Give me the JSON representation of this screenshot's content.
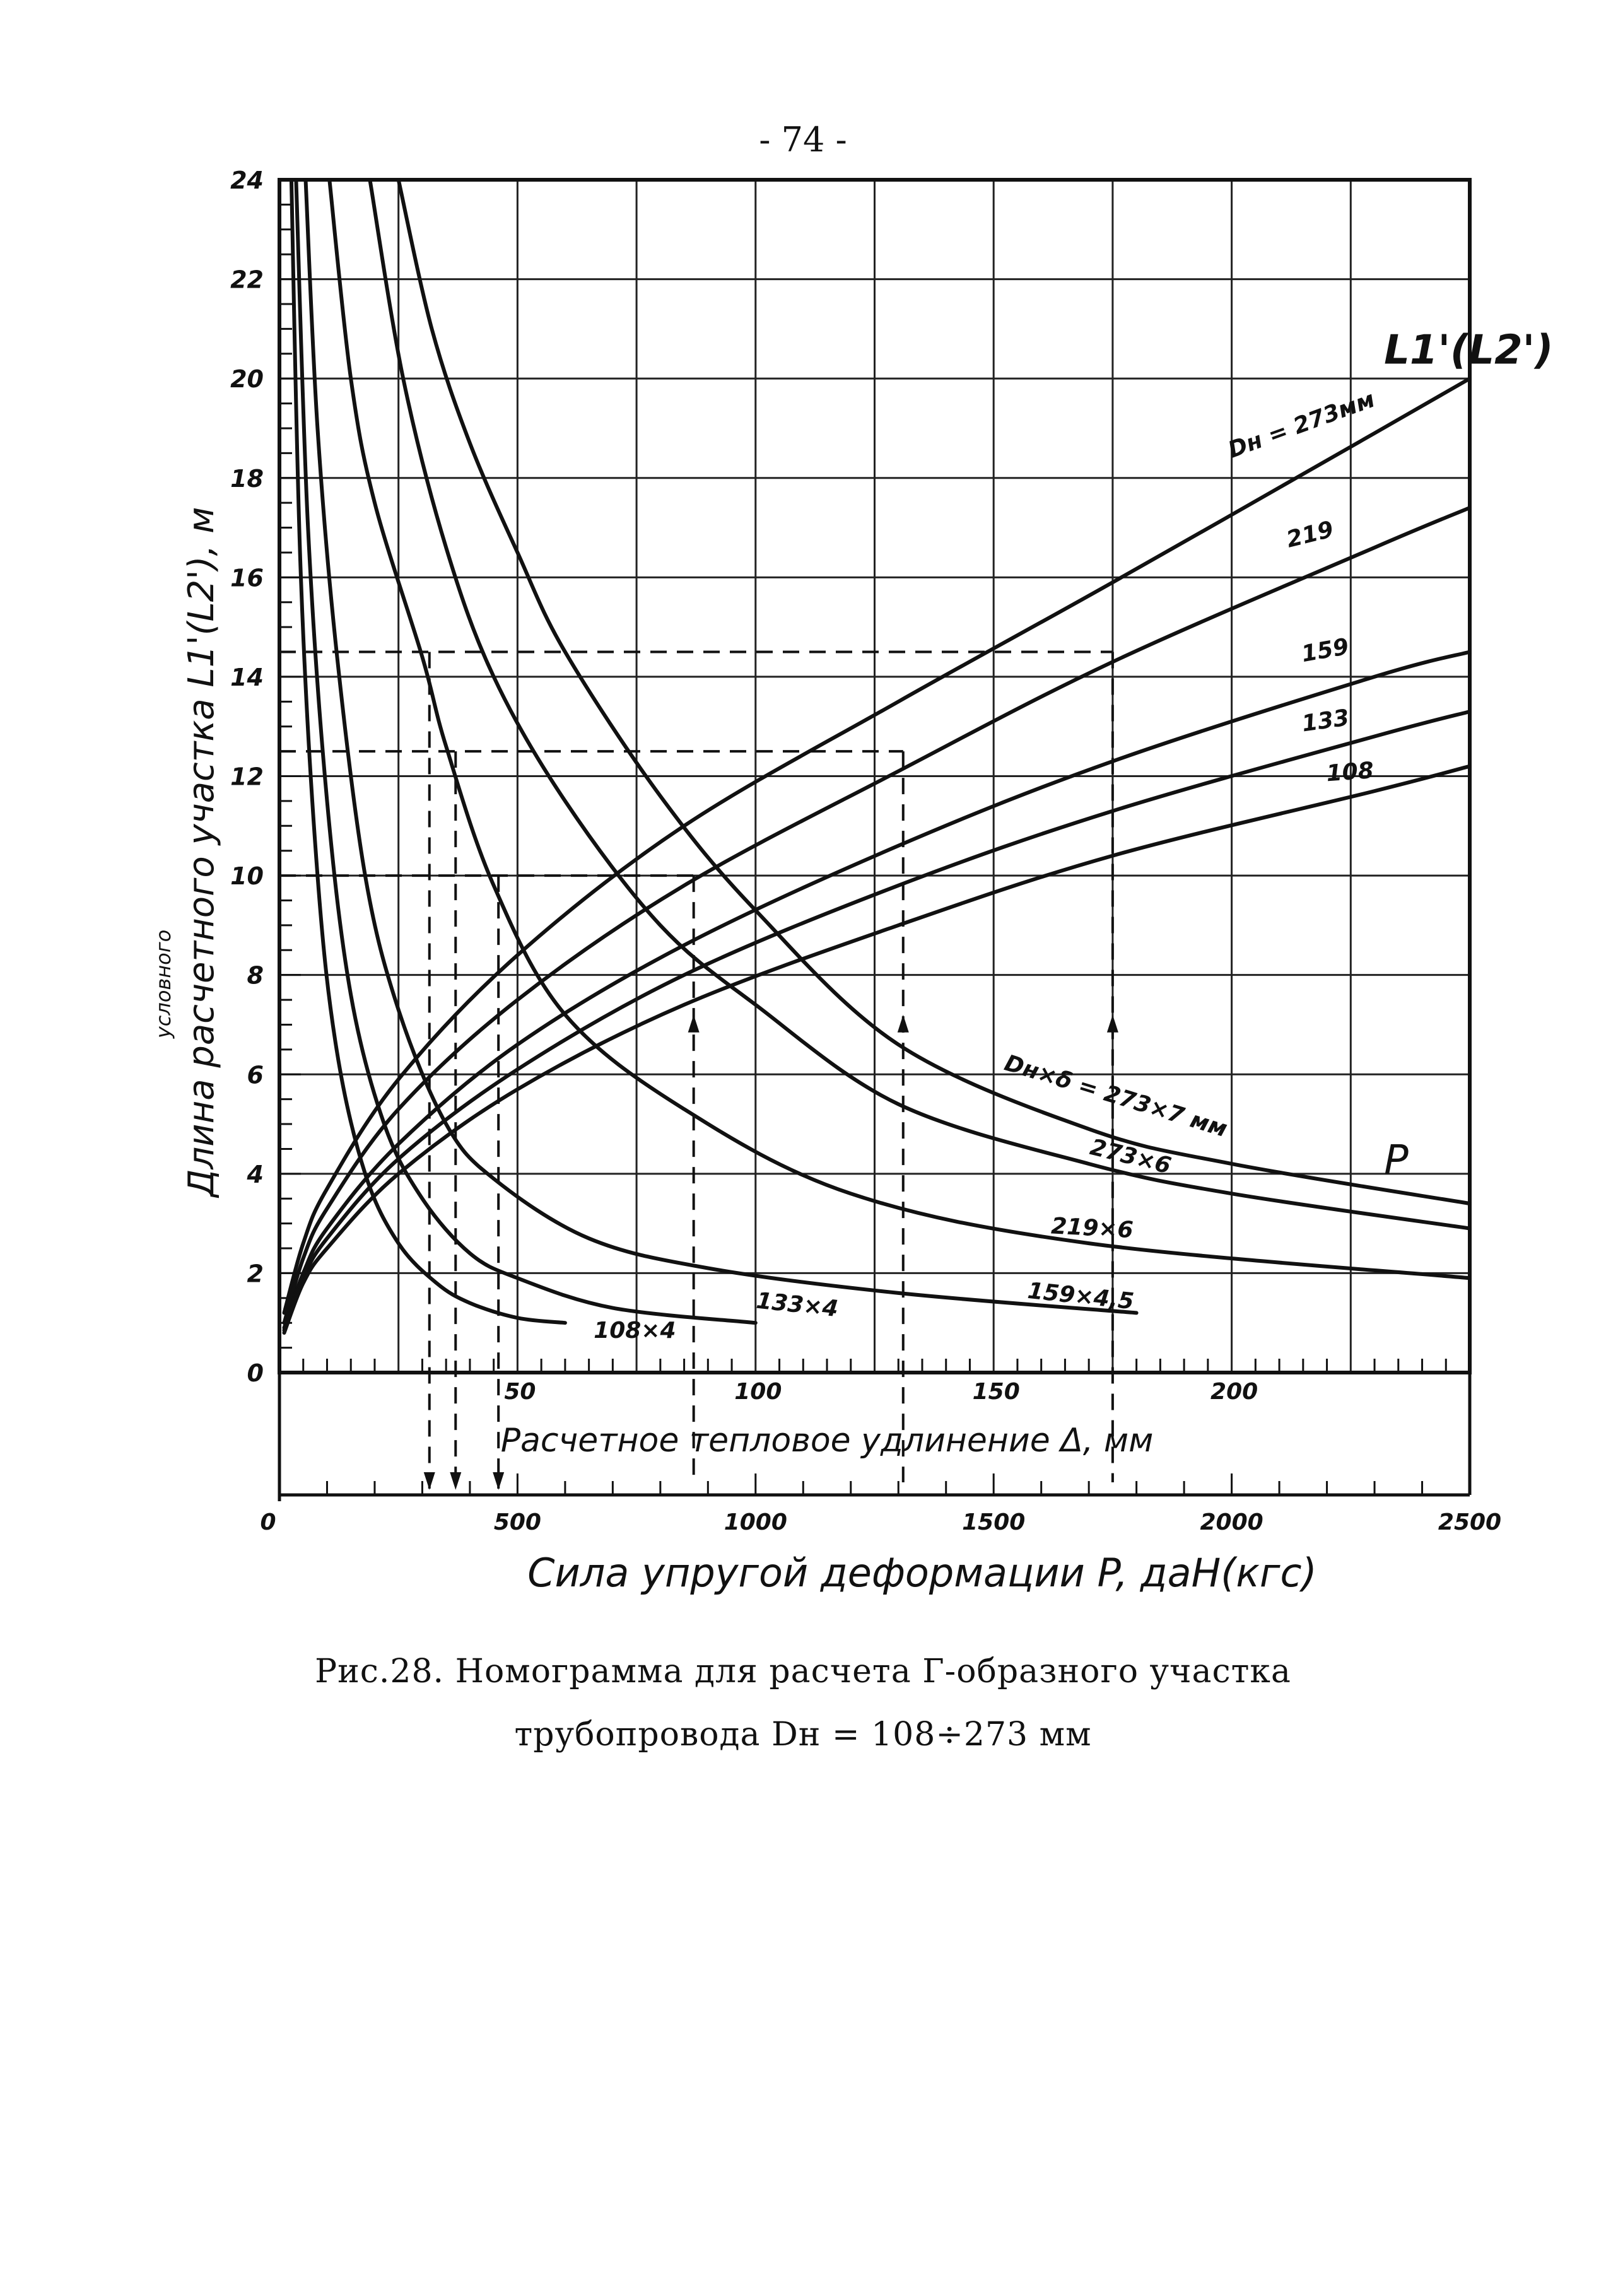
{
  "page": {
    "number": "- 74 -",
    "caption_line1": "Рис.28. Номограмма для расчета Г-образного участка",
    "caption_line2": "трубопровода Dн = 108÷273 мм"
  },
  "chart_data": {
    "type": "line",
    "title": "",
    "ylabel_top": "условного",
    "ylabel": "Длина расчетного участка L1'(L2'), м",
    "xlabel": "Расчетное тепловое удлинение Δ, мм",
    "x2label": "Сила упругой деформации P, даН(кгс)",
    "ylim": [
      0,
      24
    ],
    "yticks": [
      0,
      2,
      4,
      6,
      8,
      10,
      12,
      14,
      16,
      18,
      20,
      22,
      24
    ],
    "ytick_labels": [
      "0",
      "2",
      "4",
      "6",
      "8",
      "10",
      "12",
      "14",
      "16",
      "18",
      "20",
      "22",
      "24"
    ],
    "xlim": [
      0,
      250
    ],
    "xticks": [
      50,
      100,
      150,
      200
    ],
    "xtick_labels": [
      "50",
      "100",
      "150",
      "200"
    ],
    "x2lim": [
      0,
      2500
    ],
    "x2ticks": [
      0,
      500,
      1000,
      1500,
      2000,
      2500
    ],
    "x2tick_labels": [
      "0",
      "500",
      "1000",
      "1500",
      "2000",
      "2500"
    ],
    "grid": true,
    "group_labels": {
      "L_curves": "L1'(L2')",
      "P_curves": "P"
    },
    "series": [
      {
        "name": "Dн = 273мм",
        "group": "L",
        "axis": "delta",
        "x": [
          1,
          5,
          10,
          25,
          50,
          85,
          130,
          175,
          230,
          250
        ],
        "y": [
          1.2,
          2.6,
          3.7,
          5.9,
          8.4,
          11.0,
          13.5,
          15.9,
          18.9,
          20.0
        ]
      },
      {
        "name": "219",
        "group": "L",
        "axis": "delta",
        "x": [
          1,
          5,
          10,
          25,
          50,
          85,
          130,
          175,
          230,
          250
        ],
        "y": [
          1.0,
          2.3,
          3.3,
          5.3,
          7.5,
          9.8,
          12.1,
          14.3,
          16.6,
          17.4
        ]
      },
      {
        "name": "159",
        "group": "L",
        "axis": "delta",
        "x": [
          1,
          5,
          10,
          25,
          50,
          85,
          130,
          175,
          230,
          250
        ],
        "y": [
          0.9,
          2.0,
          2.9,
          4.6,
          6.6,
          8.6,
          10.6,
          12.3,
          14.0,
          14.5
        ]
      },
      {
        "name": "133",
        "group": "L",
        "axis": "delta",
        "x": [
          1,
          5,
          10,
          25,
          50,
          85,
          130,
          175,
          230,
          250
        ],
        "y": [
          0.85,
          1.9,
          2.7,
          4.3,
          6.1,
          8.0,
          9.8,
          11.3,
          12.8,
          13.3
        ]
      },
      {
        "name": "108",
        "group": "L",
        "axis": "delta",
        "x": [
          1,
          5,
          10,
          25,
          50,
          85,
          130,
          175,
          230,
          250
        ],
        "y": [
          0.8,
          1.8,
          2.5,
          4.0,
          5.7,
          7.4,
          9.0,
          10.4,
          11.7,
          12.2
        ]
      },
      {
        "name": "Dн×δ = 273×7 мм",
        "group": "P",
        "axis": "force",
        "x": [
          250,
          320,
          400,
          500,
          600,
          800,
          1000,
          1300,
          1700,
          2000,
          2500
        ],
        "y": [
          24.0,
          21.0,
          18.7,
          16.5,
          14.5,
          11.6,
          9.3,
          6.6,
          4.9,
          4.2,
          3.4
        ]
      },
      {
        "name": "273×6",
        "group": "P",
        "axis": "force",
        "x": [
          190,
          260,
          350,
          450,
          600,
          800,
          1000,
          1300,
          1700,
          2000,
          2500
        ],
        "y": [
          24.0,
          20.0,
          16.6,
          14.0,
          11.5,
          9.0,
          7.4,
          5.4,
          4.2,
          3.6,
          2.9
        ]
      },
      {
        "name": "219×6",
        "group": "P",
        "axis": "force",
        "x": [
          105,
          150,
          200,
          300,
          350,
          450,
          600,
          850,
          1200,
          1700,
          2500
        ],
        "y": [
          24.0,
          20.0,
          17.5,
          14.4,
          12.6,
          9.8,
          7.2,
          5.3,
          3.6,
          2.6,
          1.9
        ]
      },
      {
        "name": "159×4,5",
        "group": "P",
        "axis": "force",
        "x": [
          55,
          80,
          120,
          180,
          250,
          350,
          450,
          650,
          900,
          1300,
          1800
        ],
        "y": [
          24.0,
          19.0,
          14.5,
          10.0,
          7.3,
          5.0,
          3.9,
          2.7,
          2.1,
          1.6,
          1.2
        ]
      },
      {
        "name": "133×4",
        "group": "P",
        "axis": "force",
        "x": [
          35,
          60,
          100,
          150,
          220,
          300,
          400,
          500,
          700,
          1000
        ],
        "y": [
          24.0,
          17.0,
          11.5,
          7.6,
          5.0,
          3.5,
          2.4,
          1.9,
          1.3,
          1.0
        ]
      },
      {
        "name": "108×4",
        "group": "P",
        "axis": "force",
        "x": [
          25,
          45,
          80,
          120,
          180,
          250,
          330,
          400,
          500,
          600
        ],
        "y": [
          24.0,
          16.0,
          10.0,
          6.5,
          4.0,
          2.6,
          1.8,
          1.4,
          1.1,
          1.0
        ]
      }
    ],
    "example_lines": {
      "horizontal_dashed_y": [
        14.5,
        12.5,
        10.0
      ],
      "vertical_dashed_force": [
        315,
        370,
        460
      ],
      "vertical_dashed_delta": [
        87,
        131,
        175
      ]
    }
  }
}
